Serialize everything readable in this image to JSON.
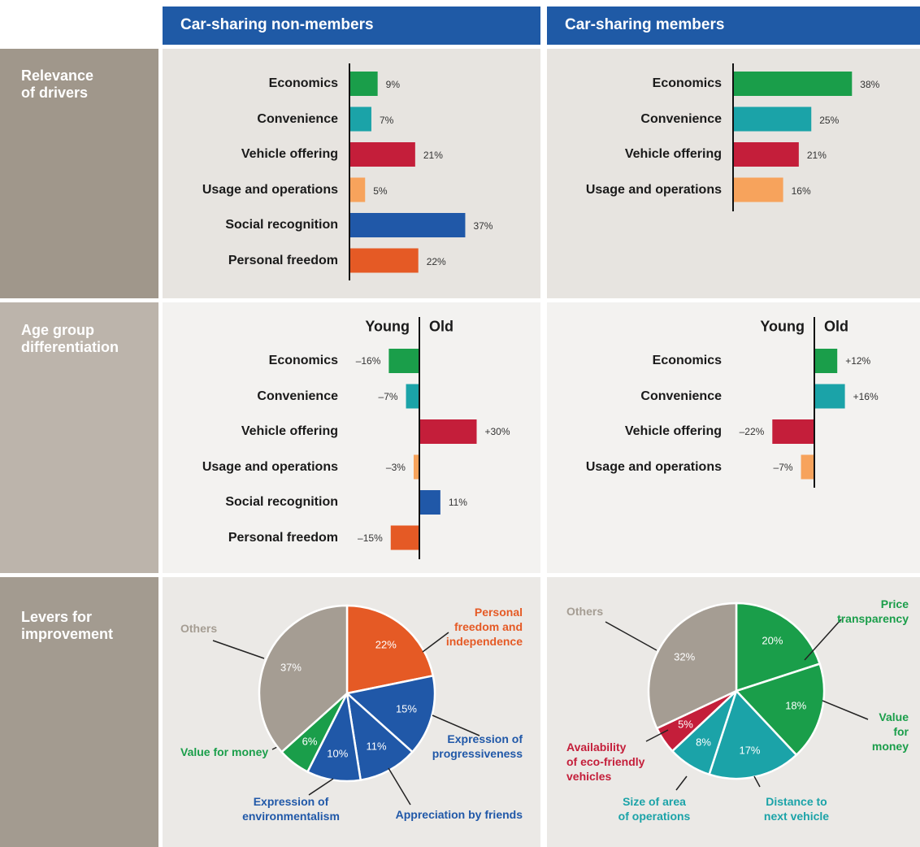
{
  "columns": [
    "Car-sharing non-members",
    "Car-sharing members"
  ],
  "rows": [
    "Relevance\nof drivers",
    "Age group\ndifferentiation",
    "Levers for\nimprovement"
  ],
  "chart_data": [
    {
      "type": "bar",
      "categories": [
        "Economics",
        "Convenience",
        "Vehicle offering",
        "Usage and operations",
        "Social recognition",
        "Personal freedom"
      ],
      "values": [
        9,
        7,
        21,
        5,
        37,
        22
      ],
      "value_labels": [
        "9%",
        "7%",
        "21%",
        "5%",
        "37%",
        "22%"
      ],
      "colors": [
        "#1a9e4a",
        "#1ba3a8",
        "#c41e3a",
        "#f7a35c",
        "#2058a8",
        "#e55a25"
      ]
    },
    {
      "type": "bar",
      "categories": [
        "Economics",
        "Convenience",
        "Vehicle offering",
        "Usage and operations"
      ],
      "values": [
        38,
        25,
        21,
        16
      ],
      "value_labels": [
        "38%",
        "25%",
        "21%",
        "16%"
      ],
      "colors": [
        "#1a9e4a",
        "#1ba3a8",
        "#c41e3a",
        "#f7a35c"
      ]
    },
    {
      "type": "diverging_bar",
      "column_labels": [
        "Young",
        "Old"
      ],
      "categories": [
        "Economics",
        "Convenience",
        "Vehicle offering",
        "Usage and operations",
        "Social recognition",
        "Personal freedom"
      ],
      "values": [
        -16,
        -7,
        30,
        -3,
        11,
        -15
      ],
      "value_labels": [
        "–16%",
        "–7%",
        "+30%",
        "–3%",
        "11%",
        "–15%"
      ],
      "colors": [
        "#1a9e4a",
        "#1ba3a8",
        "#c41e3a",
        "#f7a35c",
        "#2058a8",
        "#e55a25"
      ]
    },
    {
      "type": "diverging_bar",
      "column_labels": [
        "Young",
        "Old"
      ],
      "categories": [
        "Economics",
        "Convenience",
        "Vehicle offering",
        "Usage and operations"
      ],
      "values": [
        12,
        16,
        -22,
        -7
      ],
      "value_labels": [
        "+12%",
        "+16%",
        "–22%",
        "–7%"
      ],
      "colors": [
        "#1a9e4a",
        "#1ba3a8",
        "#c41e3a",
        "#f7a35c"
      ]
    },
    {
      "type": "pie",
      "categories": [
        "Personal\nfreedom and\nindependence",
        "Expression of\nprogressiveness",
        "Appreciation by friends",
        "Expression of\nenvironmentalism",
        "Value for money",
        "Others"
      ],
      "values": [
        22,
        15,
        11,
        10,
        6,
        37
      ],
      "value_labels": [
        "22%",
        "15%",
        "11%",
        "10%",
        "6%",
        "37%"
      ],
      "colors": [
        "#e55a25",
        "#2058a8",
        "#2058a8",
        "#2058a8",
        "#1a9e4a",
        "#a59d93"
      ]
    },
    {
      "type": "pie",
      "categories": [
        "Price transparency",
        "Value\nfor money",
        "Distance to\nnext vehicle",
        "Size of area\nof operations",
        "Availability\nof eco-friendly\nvehicles",
        "Others"
      ],
      "values": [
        20,
        18,
        17,
        8,
        5,
        32
      ],
      "value_labels": [
        "20%",
        "18%",
        "17%",
        "8%",
        "5%",
        "32%"
      ],
      "colors": [
        "#1a9e4a",
        "#1a9e4a",
        "#1ba3a8",
        "#1ba3a8",
        "#c41e3a",
        "#a59d93"
      ]
    }
  ]
}
